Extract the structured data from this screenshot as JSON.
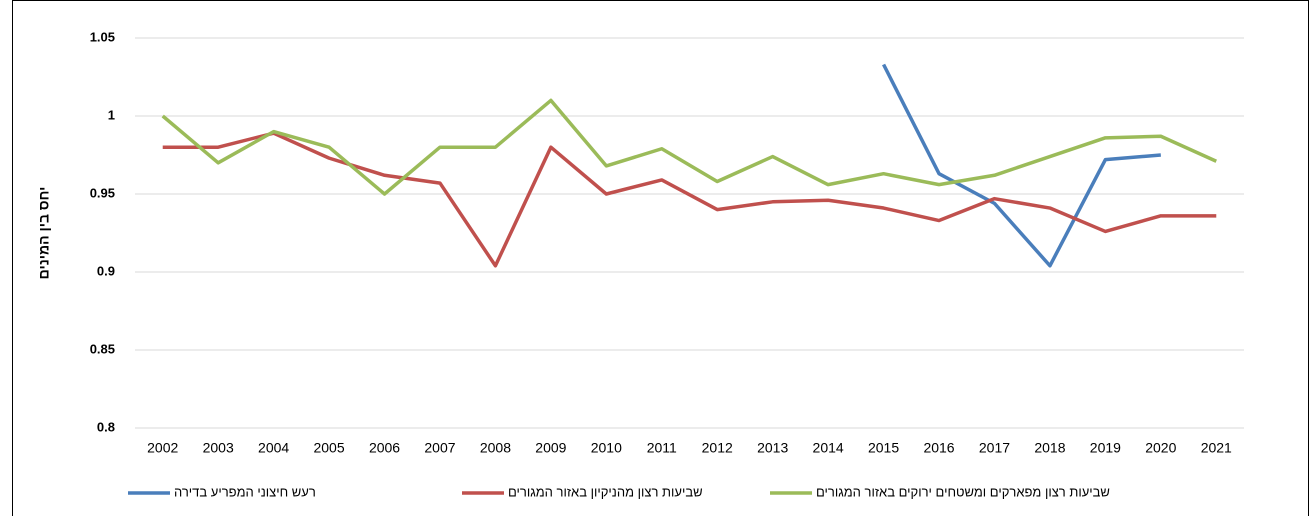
{
  "chart_data": {
    "type": "line",
    "y_label": "יחס בין המינים",
    "categories": [
      "2002",
      "2003",
      "2004",
      "2005",
      "2006",
      "2007",
      "2008",
      "2009",
      "2010",
      "2011",
      "2012",
      "2013",
      "2014",
      "2015",
      "2016",
      "2017",
      "2018",
      "2019",
      "2020",
      "2021"
    ],
    "series": [
      {
        "name": "רעש חיצוני המפריע בדירה",
        "color": "#4a7ebb",
        "values": [
          null,
          null,
          null,
          null,
          null,
          null,
          null,
          null,
          null,
          null,
          null,
          null,
          null,
          1.033,
          0.963,
          0.944,
          0.904,
          0.972,
          0.975,
          null
        ]
      },
      {
        "name": "שביעות רצון מהניקיון באזור המגורים",
        "color": "#c0504d",
        "values": [
          0.98,
          0.98,
          0.989,
          0.973,
          0.962,
          0.957,
          0.904,
          0.98,
          0.95,
          0.959,
          0.94,
          0.945,
          0.946,
          0.941,
          0.933,
          0.947,
          0.941,
          0.926,
          0.936,
          0.936
        ]
      },
      {
        "name": "שביעות רצון מפארקים ומשטחים ירוקים באזור המגורים",
        "color": "#9bbb59",
        "values": [
          1.0,
          0.97,
          0.99,
          0.98,
          0.95,
          0.98,
          0.98,
          1.01,
          0.968,
          0.979,
          0.958,
          0.974,
          0.956,
          0.963,
          0.956,
          0.962,
          0.974,
          0.986,
          0.987,
          0.971
        ]
      }
    ],
    "ylim": [
      0.8,
      1.05
    ],
    "yticks": [
      0.8,
      0.85,
      0.9,
      0.95,
      1,
      1.05
    ],
    "grid": true,
    "legend": "bottom"
  }
}
